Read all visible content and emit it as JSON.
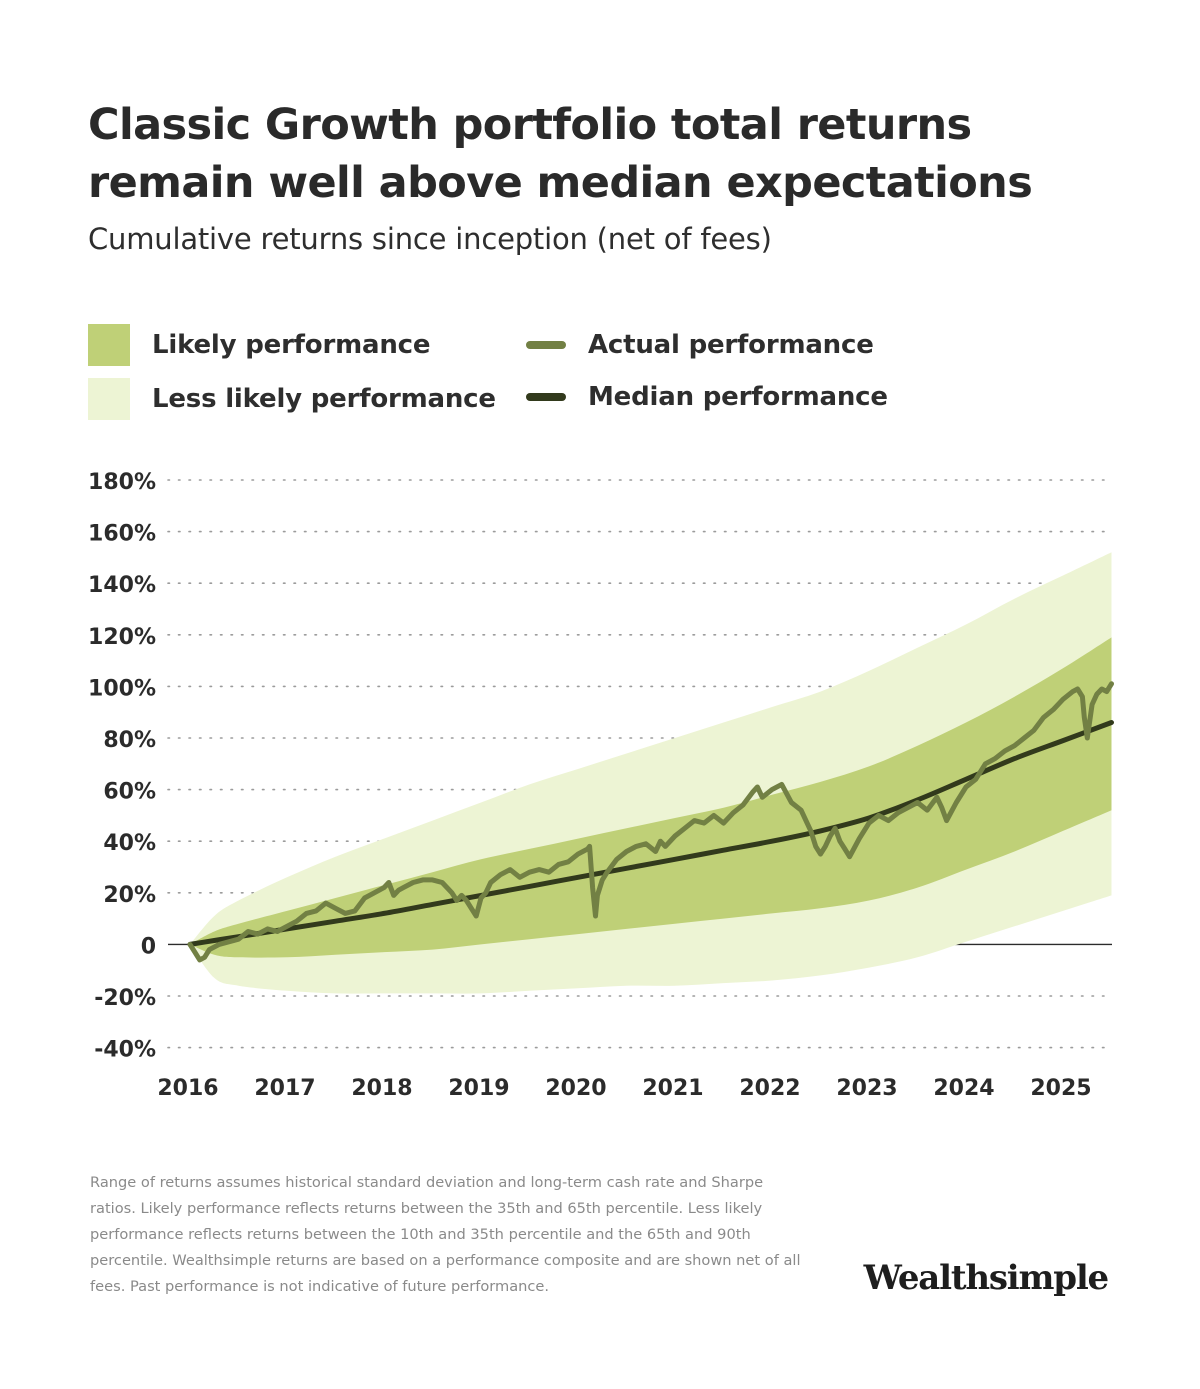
{
  "title": "Classic Growth portfolio total returns remain well above median expectations",
  "subtitle": "Cumulative returns since inception (net of fees)",
  "legend": {
    "likely": "Likely performance",
    "less_likely": "Less likely performance",
    "actual": "Actual performance",
    "median": "Median performance"
  },
  "colors": {
    "likely": "#bfd077",
    "less_likely": "#edf4d4",
    "actual": "#728044",
    "median": "#323a1c",
    "grid": "#9b9b9b",
    "zero": "#2b2b2b"
  },
  "footnote": "Range of returns assumes historical standard deviation and long-term cash rate and Sharpe ratios. Likely performance reflects returns between the 35th and 65th percentile. Less likely performance reflects returns between the 10th and 35th percentile and the 65th and 90th percentile. Wealthsimple returns are based on a performance composite and are shown net of all fees. Past performance is not indicative of future performance.",
  "brand": "Wealthsimple",
  "chart_data": {
    "type": "area",
    "xlim": [
      2016,
      2025.5
    ],
    "ylim": [
      -40,
      180
    ],
    "yticks": [
      180,
      160,
      140,
      120,
      100,
      80,
      60,
      40,
      20,
      0,
      -20,
      -40
    ],
    "ytick_labels": [
      "180%",
      "160%",
      "140%",
      "120%",
      "100%",
      "80%",
      "60%",
      "40%",
      "20%",
      "0",
      "-20%",
      "-40%"
    ],
    "xticks": [
      2016,
      2017,
      2018,
      2019,
      2020,
      2021,
      2022,
      2023,
      2024,
      2025
    ],
    "xtick_labels": [
      "2016",
      "2017",
      "2018",
      "2019",
      "2020",
      "2021",
      "2022",
      "2023",
      "2024",
      "2025"
    ],
    "grid": "horizontal dotted",
    "legend_position": "top",
    "bands": {
      "x": [
        2016,
        2016.25,
        2016.5,
        2017,
        2017.5,
        2018,
        2018.5,
        2019,
        2019.5,
        2020,
        2020.5,
        2021,
        2021.5,
        2022,
        2022.5,
        2023,
        2023.5,
        2024,
        2024.5,
        2025,
        2025.5
      ],
      "p90": [
        0,
        11,
        17,
        26,
        34,
        41,
        48,
        55,
        62,
        68,
        74,
        80,
        86,
        92,
        98,
        106,
        115,
        124,
        134,
        143,
        152
      ],
      "p65": [
        0,
        5,
        8,
        13,
        18,
        23,
        28,
        33,
        37,
        41,
        45,
        49,
        53,
        58,
        63,
        69,
        77,
        86,
        96,
        107,
        119
      ],
      "p35": [
        0,
        -4,
        -5,
        -5,
        -4,
        -3,
        -2,
        0,
        2,
        4,
        6,
        8,
        10,
        12,
        14,
        17,
        22,
        29,
        36,
        44,
        52
      ],
      "p10": [
        0,
        -13,
        -16,
        -18,
        -19,
        -19,
        -19,
        -19,
        -18,
        -17,
        -16,
        -16,
        -15,
        -14,
        -12,
        -9,
        -5,
        1,
        7,
        13,
        19
      ],
      "median": [
        0,
        1.5,
        3,
        6,
        9,
        12,
        15.5,
        19,
        22.5,
        26,
        29.5,
        33,
        36.5,
        40,
        44,
        49,
        56,
        64,
        72,
        79,
        86
      ]
    },
    "series": [
      {
        "name": "Actual performance",
        "x": [
          2016,
          2016.05,
          2016.1,
          2016.15,
          2016.2,
          2016.3,
          2016.4,
          2016.5,
          2016.6,
          2016.7,
          2016.8,
          2016.9,
          2017,
          2017.1,
          2017.2,
          2017.3,
          2017.4,
          2017.5,
          2017.6,
          2017.7,
          2017.8,
          2017.9,
          2018,
          2018.05,
          2018.1,
          2018.15,
          2018.2,
          2018.3,
          2018.4,
          2018.5,
          2018.6,
          2018.7,
          2018.75,
          2018.8,
          2018.85,
          2018.9,
          2018.95,
          2019,
          2019.05,
          2019.1,
          2019.2,
          2019.3,
          2019.4,
          2019.5,
          2019.6,
          2019.7,
          2019.8,
          2019.9,
          2020,
          2020.1,
          2020.12,
          2020.15,
          2020.18,
          2020.2,
          2020.25,
          2020.3,
          2020.4,
          2020.5,
          2020.6,
          2020.7,
          2020.8,
          2020.85,
          2020.9,
          2021,
          2021.1,
          2021.2,
          2021.3,
          2021.4,
          2021.5,
          2021.6,
          2021.7,
          2021.8,
          2021.85,
          2021.9,
          2022,
          2022.1,
          2022.2,
          2022.3,
          2022.4,
          2022.45,
          2022.5,
          2022.55,
          2022.6,
          2022.65,
          2022.7,
          2022.75,
          2022.8,
          2022.9,
          2023,
          2023.1,
          2023.2,
          2023.3,
          2023.4,
          2023.5,
          2023.6,
          2023.7,
          2023.75,
          2023.8,
          2023.9,
          2024,
          2024.1,
          2024.2,
          2024.3,
          2024.4,
          2024.5,
          2024.6,
          2024.7,
          2024.8,
          2024.9,
          2025,
          2025.1,
          2025.15,
          2025.2,
          2025.22,
          2025.25,
          2025.3,
          2025.35,
          2025.4,
          2025.45,
          2025.5
        ],
        "values": [
          0,
          -3,
          -6,
          -5,
          -2,
          0,
          1,
          2,
          5,
          4,
          6,
          5,
          7,
          9,
          12,
          13,
          16,
          14,
          12,
          13,
          18,
          20,
          22,
          24,
          19,
          21,
          22,
          24,
          25,
          25,
          24,
          20,
          17,
          19,
          17,
          14,
          11,
          18,
          20,
          24,
          27,
          29,
          26,
          28,
          29,
          28,
          31,
          32,
          35,
          37,
          38,
          22,
          11,
          19,
          25,
          28,
          33,
          36,
          38,
          39,
          36,
          40,
          38,
          42,
          45,
          48,
          47,
          50,
          47,
          51,
          54,
          59,
          61,
          57,
          60,
          62,
          55,
          52,
          44,
          38,
          35,
          38,
          42,
          45,
          40,
          37,
          34,
          41,
          47,
          50,
          48,
          51,
          53,
          55,
          52,
          57,
          53,
          48,
          55,
          61,
          64,
          70,
          72,
          75,
          77,
          80,
          83,
          88,
          91,
          95,
          98,
          99,
          96,
          88,
          80,
          93,
          97,
          99,
          98,
          101
        ]
      }
    ]
  }
}
